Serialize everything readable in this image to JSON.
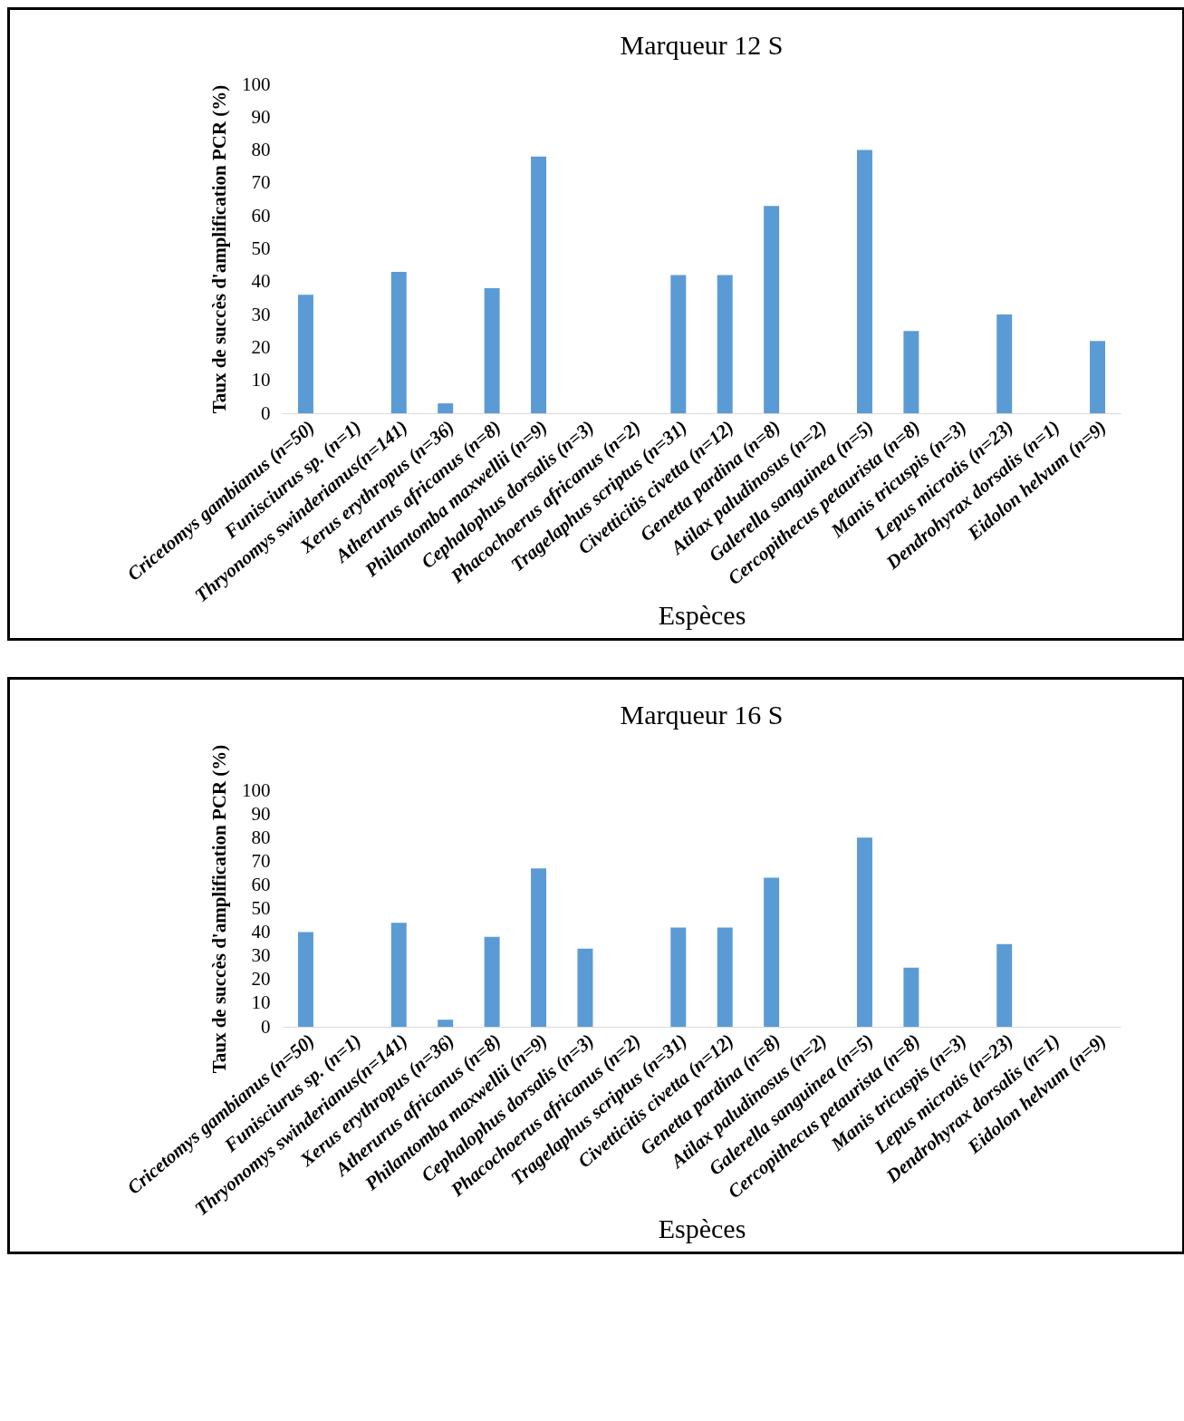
{
  "chart_data": [
    {
      "type": "bar",
      "title": "Marqueur 12 S",
      "xlabel": "Espèces",
      "ylabel": "Taux de succès d'amplification PCR (%)",
      "categories": [
        "Cricetomys gambianus (n=50)",
        "Funisciurus sp. (n=1)",
        "Thryonomys swinderianus(n=141)",
        "Xerus erythropus (n=36)",
        "Atherurus africanus (n=8)",
        "Philantomba maxwellii (n=9)",
        "Cephalophus dorsalis (n=3)",
        "Phacochoerus africanus (n=2)",
        "Tragelaphus scriptus (n=31)",
        "Civetticitis civetta (n=12)",
        "Genetta pardina (n=8)",
        "Atilax paludinosus (n=2)",
        "Galerella sanguinea (n=5)",
        "Cercopithecus petaurista (n=8)",
        "Manis tricuspis (n=3)",
        "Lepus microtis (n=23)",
        "Dendrohyrax dorsalis (n=1)",
        "Eidolon helvum (n=9)"
      ],
      "values": [
        36,
        0,
        43,
        3,
        38,
        78,
        0,
        0,
        42,
        42,
        63,
        0,
        80,
        25,
        0,
        30,
        0,
        22
      ],
      "color": "#5b9bd5",
      "ylim": [
        0,
        100
      ],
      "yticks": [
        0,
        10,
        20,
        30,
        40,
        50,
        60,
        70,
        80,
        90,
        100
      ]
    },
    {
      "type": "bar",
      "title": "Marqueur 16 S",
      "xlabel": "Espèces",
      "ylabel": "Taux de succès d'amplification PCR (%)",
      "categories": [
        "Cricetomys gambianus (n=50)",
        "Funisciurus sp. (n=1)",
        "Thryonomys swinderianus(n=141)",
        "Xerus erythropus (n=36)",
        "Atherurus africanus (n=8)",
        "Philantomba maxwellii (n=9)",
        "Cephalophus dorsalis (n=3)",
        "Phacochoerus africanus (n=2)",
        "Tragelaphus scriptus (n=31)",
        "Civetticitis civetta (n=12)",
        "Genetta pardina (n=8)",
        "Atilax paludinosus (n=2)",
        "Galerella sanguinea (n=5)",
        "Cercopithecus petaurista (n=8)",
        "Manis tricuspis (n=3)",
        "Lepus microtis (n=23)",
        "Dendrohyrax dorsalis (n=1)",
        "Eidolon helvum (n=9)"
      ],
      "values": [
        40,
        0,
        44,
        3,
        38,
        67,
        33,
        0,
        42,
        42,
        63,
        0,
        80,
        25,
        0,
        35,
        0,
        0
      ],
      "color": "#5b9bd5",
      "ylim": [
        0,
        100
      ],
      "yticks": [
        0,
        10,
        20,
        30,
        40,
        50,
        60,
        70,
        80,
        90,
        100
      ]
    }
  ]
}
